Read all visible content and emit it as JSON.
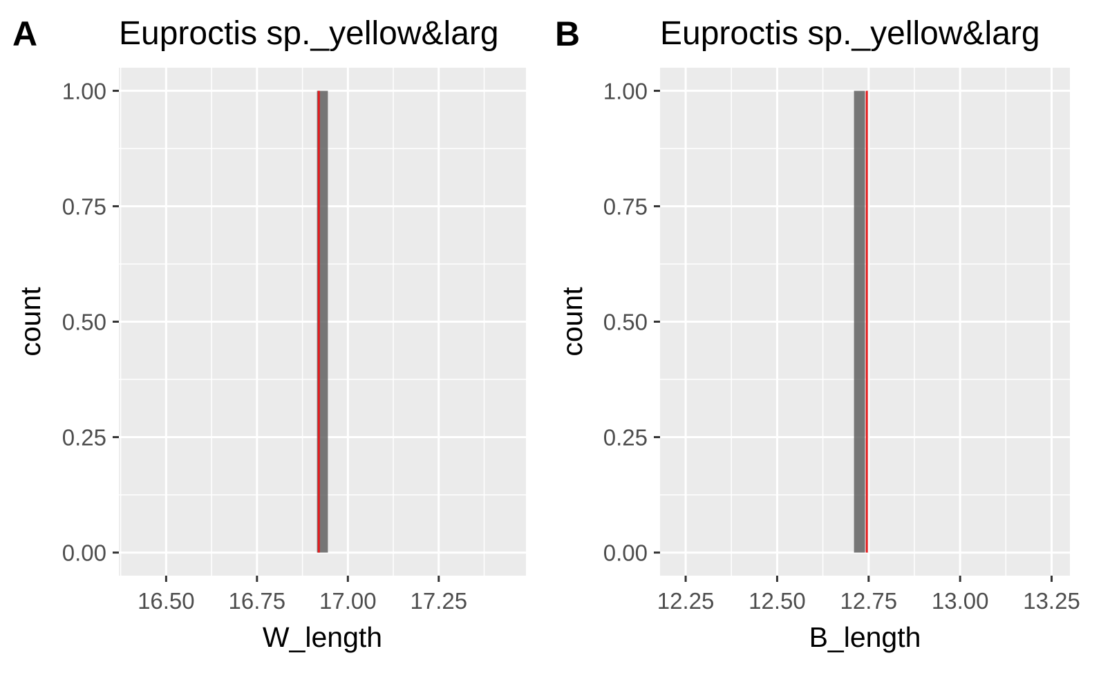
{
  "chart_data": [
    {
      "type": "bar",
      "tag": "A",
      "title": "Euproctis sp._yellow&larg",
      "xlabel": "W_length",
      "ylabel": "count",
      "xlim": [
        16.37,
        17.49
      ],
      "ylim": [
        -0.05,
        1.05
      ],
      "xticks": [
        "16.50",
        "16.75",
        "17.00",
        "17.25"
      ],
      "yticks": [
        "0.00",
        "0.25",
        "0.50",
        "0.75",
        "1.00"
      ],
      "bars": [
        {
          "x0": 16.915,
          "x1": 16.945,
          "count": 1
        }
      ],
      "vline": {
        "x": 16.92,
        "color": "#e41a1c"
      },
      "bar_color": "#595959",
      "panel_bg": "#ebebeb",
      "grid": true
    },
    {
      "type": "bar",
      "tag": "B",
      "title": "Euproctis sp._yellow&larg",
      "xlabel": "B_length",
      "ylabel": "count",
      "xlim": [
        12.18,
        13.3
      ],
      "ylim": [
        -0.05,
        1.05
      ],
      "xticks": [
        "12.25",
        "12.50",
        "12.75",
        "13.00",
        "13.25"
      ],
      "yticks": [
        "0.00",
        "0.25",
        "0.50",
        "0.75",
        "1.00"
      ],
      "bars": [
        {
          "x0": 12.71,
          "x1": 12.74,
          "count": 1
        }
      ],
      "vline": {
        "x": 12.745,
        "color": "#e41a1c"
      },
      "bar_color": "#595959",
      "panel_bg": "#ebebeb",
      "grid": true
    }
  ]
}
